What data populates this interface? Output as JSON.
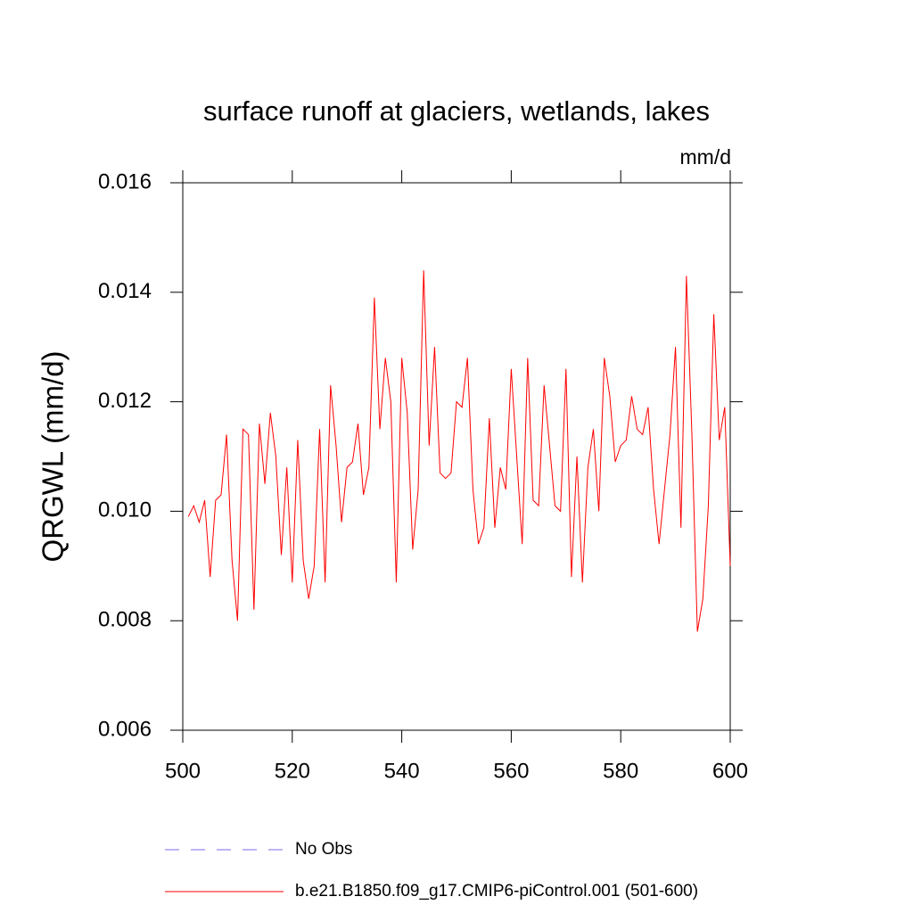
{
  "chart_data": {
    "type": "line",
    "title": "surface runoff at glaciers, wetlands, lakes",
    "units": "mm/d",
    "y_label": "QRGWL  (mm/d)",
    "x": [
      501,
      502,
      503,
      504,
      505,
      506,
      507,
      508,
      509,
      510,
      511,
      512,
      513,
      514,
      515,
      516,
      517,
      518,
      519,
      520,
      521,
      522,
      523,
      524,
      525,
      526,
      527,
      528,
      529,
      530,
      531,
      532,
      533,
      534,
      535,
      536,
      537,
      538,
      539,
      540,
      541,
      542,
      543,
      544,
      545,
      546,
      547,
      548,
      549,
      550,
      551,
      552,
      553,
      554,
      555,
      556,
      557,
      558,
      559,
      560,
      561,
      562,
      563,
      564,
      565,
      566,
      567,
      568,
      569,
      570,
      571,
      572,
      573,
      574,
      575,
      576,
      577,
      578,
      579,
      580,
      581,
      582,
      583,
      584,
      585,
      586,
      587,
      588,
      589,
      590,
      591,
      592,
      593,
      594,
      595,
      596,
      597,
      598,
      599,
      600
    ],
    "series": [
      {
        "name": "b.e21.B1850.f09_g17.CMIP6-piControl.001 (501-600)",
        "color": "#ff0000",
        "values": [
          0.0099,
          0.0101,
          0.0098,
          0.0102,
          0.0088,
          0.0102,
          0.0103,
          0.0114,
          0.0091,
          0.008,
          0.0115,
          0.0114,
          0.0082,
          0.0116,
          0.0105,
          0.0118,
          0.011,
          0.0092,
          0.0108,
          0.0087,
          0.0113,
          0.0091,
          0.0084,
          0.009,
          0.0115,
          0.0087,
          0.0123,
          0.0112,
          0.0098,
          0.0108,
          0.0109,
          0.0116,
          0.0103,
          0.0108,
          0.0139,
          0.0115,
          0.0128,
          0.012,
          0.0087,
          0.0128,
          0.0118,
          0.0093,
          0.0104,
          0.0144,
          0.0112,
          0.013,
          0.0107,
          0.0106,
          0.0107,
          0.012,
          0.0119,
          0.0128,
          0.0104,
          0.0094,
          0.0097,
          0.0117,
          0.0097,
          0.0108,
          0.0104,
          0.0126,
          0.011,
          0.0094,
          0.0128,
          0.0102,
          0.0101,
          0.0123,
          0.0112,
          0.0101,
          0.01,
          0.0126,
          0.0088,
          0.011,
          0.0087,
          0.0108,
          0.0115,
          0.01,
          0.0128,
          0.0121,
          0.0109,
          0.0112,
          0.0113,
          0.0121,
          0.0115,
          0.0114,
          0.0119,
          0.0104,
          0.0094,
          0.0104,
          0.0114,
          0.013,
          0.0097,
          0.0143,
          0.0114,
          0.0078,
          0.0084,
          0.0101,
          0.0136,
          0.0113,
          0.0119,
          0.009
        ]
      }
    ],
    "legend_only": [
      {
        "name": "No Obs",
        "color": "#7b68ee",
        "dashed": true
      }
    ],
    "xlim": [
      500,
      600
    ],
    "xticks": [
      500,
      520,
      540,
      560,
      580,
      600
    ],
    "ylim": [
      0.006,
      0.016
    ],
    "yticks": [
      0.006,
      0.008,
      {
        "value": 0.01,
        "label": "0.010"
      },
      0.012,
      0.014,
      0.016
    ]
  }
}
